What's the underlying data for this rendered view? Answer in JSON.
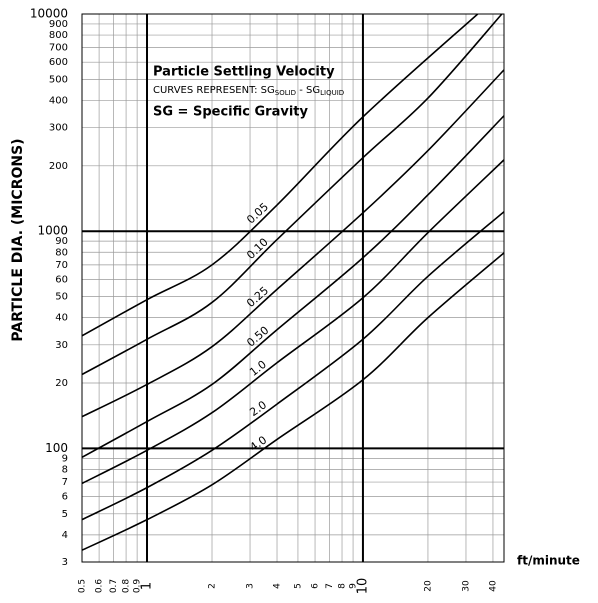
{
  "chart_data": {
    "type": "line",
    "title": "Particle Settling Velocity",
    "subtitle": [
      "CURVES REPRESENT:  SG",
      "SOLID",
      " - SG",
      "LIQUID"
    ],
    "annotation": "SG = Specific Gravity",
    "xlabel": "ft/minute",
    "ylabel": "PARTICLE DIA. (MICRONS)",
    "xscale": "log",
    "yscale": "log",
    "grid": true,
    "xlim": [
      0.5,
      45
    ],
    "ylim": [
      30,
      10000
    ],
    "xticks": [
      0.5,
      0.6,
      0.7,
      0.8,
      0.9,
      1,
      2,
      3,
      4,
      5,
      6,
      7,
      8,
      9,
      10,
      20,
      30,
      40
    ],
    "yticks": [
      {
        "value": 30,
        "label": "3"
      },
      {
        "value": 40,
        "label": "4"
      },
      {
        "value": 50,
        "label": "5"
      },
      {
        "value": 60,
        "label": "6"
      },
      {
        "value": 70,
        "label": "7"
      },
      {
        "value": 80,
        "label": "8"
      },
      {
        "value": 90,
        "label": "9"
      },
      100,
      {
        "value": 200,
        "label": "20"
      },
      {
        "value": 300,
        "label": "30"
      },
      {
        "value": 400,
        "label": "40"
      },
      {
        "value": 500,
        "label": "50"
      },
      {
        "value": 600,
        "label": "60"
      },
      {
        "value": 700,
        "label": "70"
      },
      {
        "value": 800,
        "label": "80"
      },
      {
        "value": 900,
        "label": "90"
      },
      1000,
      {
        "value": 2000,
        "label": "200"
      },
      {
        "value": 3000,
        "label": "300"
      },
      {
        "value": 4000,
        "label": "400"
      },
      {
        "value": 5000,
        "label": "500"
      },
      {
        "value": 6000,
        "label": "600"
      },
      {
        "value": 7000,
        "label": "700"
      },
      {
        "value": 8000,
        "label": "800"
      },
      {
        "value": 9000,
        "label": "900"
      },
      10000
    ],
    "major_xticks": [
      1,
      10
    ],
    "major_yticks": [
      100,
      1000
    ],
    "series": [
      {
        "name": "0.05",
        "color": "#000000",
        "x": [
          0.5,
          1,
          2,
          4,
          10,
          34
        ],
        "values": [
          330,
          484,
          700,
          1320,
          3360,
          10000
        ]
      },
      {
        "name": "0.10",
        "color": "#000000",
        "x": [
          0.5,
          1,
          2,
          4,
          10,
          20,
          44
        ],
        "values": [
          219,
          318,
          470,
          915,
          2180,
          4100,
          10000
        ]
      },
      {
        "name": "0.25",
        "color": "#000000",
        "x": [
          0.5,
          1,
          2,
          4,
          10,
          20,
          45
        ],
        "values": [
          140,
          197,
          294,
          540,
          1215,
          2350,
          5530
        ]
      },
      {
        "name": "0.50",
        "color": "#000000",
        "x": [
          0.5,
          1,
          2,
          4,
          10,
          20,
          45
        ],
        "values": [
          91,
          133,
          197,
          352,
          755,
          1470,
          3400
        ]
      },
      {
        "name": "1.0",
        "color": "#000000",
        "x": [
          0.5,
          1,
          2,
          4,
          10,
          20,
          45
        ],
        "values": [
          69,
          98,
          146,
          248,
          494,
          985,
          2130
        ]
      },
      {
        "name": "2.0",
        "color": "#000000",
        "x": [
          0.5,
          1,
          2,
          4,
          10,
          20,
          45
        ],
        "values": [
          47,
          66,
          98,
          160,
          318,
          620,
          1230
        ]
      },
      {
        "name": "4.0",
        "color": "#000000",
        "x": [
          0.5,
          1,
          2,
          4,
          10,
          20,
          45
        ],
        "values": [
          34,
          47,
          68,
          110,
          207,
          400,
          795
        ]
      }
    ]
  }
}
